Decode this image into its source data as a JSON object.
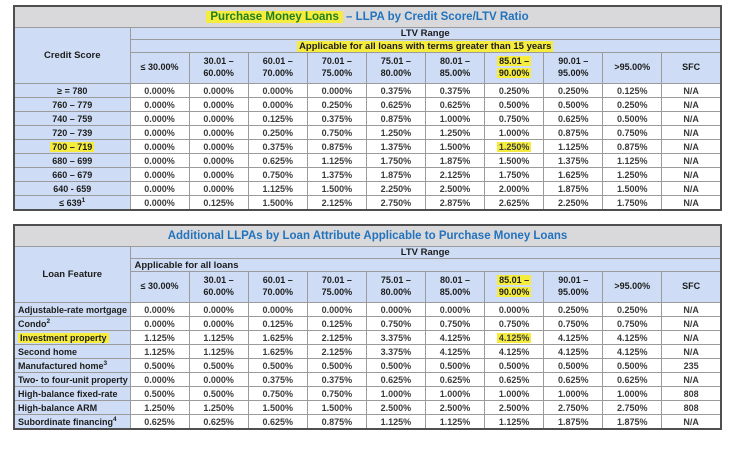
{
  "colors": {
    "title_bar_bg": "#D9D9DC",
    "title_text_blue": "#2273BE",
    "highlighted_title_text_green": "#1F7F1F",
    "header_cell_bg": "#CEDDF5",
    "highlight_yellow": "#F5EC3D",
    "data_text": "#3C3C3C",
    "border_inner": "#9B9B9B",
    "border_outer": "#4F4F4F"
  },
  "table1": {
    "title_parts": [
      {
        "text": "Purchase Money Loans",
        "style": "green-highlight"
      },
      {
        "text": " – LLPA by Credit Score/LTV Ratio",
        "style": "blue"
      }
    ],
    "corner_header": "Credit Score",
    "ltv_range_label": "LTV Range",
    "sub_header": {
      "text": "Applicable for all loans with terms greater than 15 years",
      "highlighted": true,
      "align": "center"
    },
    "columns": [
      {
        "line1": "≤ 30.00%",
        "line2": "",
        "highlight": false
      },
      {
        "line1": "30.01 –",
        "line2": "60.00%",
        "highlight": false
      },
      {
        "line1": "60.01 –",
        "line2": "70.00%",
        "highlight": false
      },
      {
        "line1": "70.01 –",
        "line2": "75.00%",
        "highlight": false
      },
      {
        "line1": "75.01 –",
        "line2": "80.00%",
        "highlight": false
      },
      {
        "line1": "80.01 –",
        "line2": "85.00%",
        "highlight": false
      },
      {
        "line1": "85.01 –",
        "line2": "90.00%",
        "highlight": true
      },
      {
        "line1": "90.01 –",
        "line2": "95.00%",
        "highlight": false
      },
      {
        "line1": ">95.00%",
        "line2": "",
        "highlight": false
      },
      {
        "line1": "SFC",
        "line2": "",
        "highlight": false
      }
    ],
    "rows": [
      {
        "label": "≥ = 780",
        "sup": "",
        "label_highlight": false,
        "highlight_col": -1,
        "values": [
          "0.000%",
          "0.000%",
          "0.000%",
          "0.000%",
          "0.375%",
          "0.375%",
          "0.250%",
          "0.250%",
          "0.125%",
          "N/A"
        ]
      },
      {
        "label": "760 – 779",
        "sup": "",
        "label_highlight": false,
        "highlight_col": -1,
        "values": [
          "0.000%",
          "0.000%",
          "0.000%",
          "0.250%",
          "0.625%",
          "0.625%",
          "0.500%",
          "0.500%",
          "0.250%",
          "N/A"
        ]
      },
      {
        "label": "740 – 759",
        "sup": "",
        "label_highlight": false,
        "highlight_col": -1,
        "values": [
          "0.000%",
          "0.000%",
          "0.125%",
          "0.375%",
          "0.875%",
          "1.000%",
          "0.750%",
          "0.625%",
          "0.500%",
          "N/A"
        ]
      },
      {
        "label": "720 – 739",
        "sup": "",
        "label_highlight": false,
        "highlight_col": -1,
        "values": [
          "0.000%",
          "0.000%",
          "0.250%",
          "0.750%",
          "1.250%",
          "1.250%",
          "1.000%",
          "0.875%",
          "0.750%",
          "N/A"
        ]
      },
      {
        "label": "700 – 719",
        "sup": "",
        "label_highlight": true,
        "highlight_col": 6,
        "values": [
          "0.000%",
          "0.000%",
          "0.375%",
          "0.875%",
          "1.375%",
          "1.500%",
          "1.250%",
          "1.125%",
          "0.875%",
          "N/A"
        ]
      },
      {
        "label": "680 – 699",
        "sup": "",
        "label_highlight": false,
        "highlight_col": -1,
        "values": [
          "0.000%",
          "0.000%",
          "0.625%",
          "1.125%",
          "1.750%",
          "1.875%",
          "1.500%",
          "1.375%",
          "1.125%",
          "N/A"
        ]
      },
      {
        "label": "660 – 679",
        "sup": "",
        "label_highlight": false,
        "highlight_col": -1,
        "values": [
          "0.000%",
          "0.000%",
          "0.750%",
          "1.375%",
          "1.875%",
          "2.125%",
          "1.750%",
          "1.625%",
          "1.250%",
          "N/A"
        ]
      },
      {
        "label": "640 - 659",
        "sup": "",
        "label_highlight": false,
        "highlight_col": -1,
        "values": [
          "0.000%",
          "0.000%",
          "1.125%",
          "1.500%",
          "2.250%",
          "2.500%",
          "2.000%",
          "1.875%",
          "1.500%",
          "N/A"
        ]
      },
      {
        "label": "≤ 639",
        "sup": "1",
        "label_highlight": false,
        "highlight_col": -1,
        "values": [
          "0.000%",
          "0.125%",
          "1.500%",
          "2.125%",
          "2.750%",
          "2.875%",
          "2.625%",
          "2.250%",
          "1.750%",
          "N/A"
        ]
      }
    ]
  },
  "table2": {
    "title_parts": [
      {
        "text": "Additional LLPAs by Loan Attribute Applicable to Purchase Money Loans",
        "style": "blue"
      }
    ],
    "corner_header": "Loan Feature",
    "ltv_range_label": "LTV Range",
    "sub_header": {
      "text": "Applicable for all loans",
      "highlighted": false,
      "align": "left"
    },
    "columns": [
      {
        "line1": "≤ 30.00%",
        "line2": "",
        "highlight": false
      },
      {
        "line1": "30.01 –",
        "line2": "60.00%",
        "highlight": false
      },
      {
        "line1": "60.01 –",
        "line2": "70.00%",
        "highlight": false
      },
      {
        "line1": "70.01 –",
        "line2": "75.00%",
        "highlight": false
      },
      {
        "line1": "75.01 –",
        "line2": "80.00%",
        "highlight": false
      },
      {
        "line1": "80.01 –",
        "line2": "85.00%",
        "highlight": false
      },
      {
        "line1": "85.01 –",
        "line2": "90.00%",
        "highlight": true
      },
      {
        "line1": "90.01 –",
        "line2": "95.00%",
        "highlight": false
      },
      {
        "line1": ">95.00%",
        "line2": "",
        "highlight": false
      },
      {
        "line1": "SFC",
        "line2": "",
        "highlight": false
      }
    ],
    "rows": [
      {
        "label": "Adjustable-rate mortgage",
        "sup": "",
        "label_highlight": false,
        "highlight_col": -1,
        "values": [
          "0.000%",
          "0.000%",
          "0.000%",
          "0.000%",
          "0.000%",
          "0.000%",
          "0.000%",
          "0.250%",
          "0.250%",
          "N/A"
        ]
      },
      {
        "label": "Condo",
        "sup": "2",
        "label_highlight": false,
        "highlight_col": -1,
        "values": [
          "0.000%",
          "0.000%",
          "0.125%",
          "0.125%",
          "0.750%",
          "0.750%",
          "0.750%",
          "0.750%",
          "0.750%",
          "N/A"
        ]
      },
      {
        "label": "Investment property",
        "sup": "",
        "label_highlight": true,
        "highlight_col": 6,
        "values": [
          "1.125%",
          "1.125%",
          "1.625%",
          "2.125%",
          "3.375%",
          "4.125%",
          "4.125%",
          "4.125%",
          "4.125%",
          "N/A"
        ]
      },
      {
        "label": "Second home",
        "sup": "",
        "label_highlight": false,
        "highlight_col": -1,
        "values": [
          "1.125%",
          "1.125%",
          "1.625%",
          "2.125%",
          "3.375%",
          "4.125%",
          "4.125%",
          "4.125%",
          "4.125%",
          "N/A"
        ]
      },
      {
        "label": "Manufactured home",
        "sup": "3",
        "label_highlight": false,
        "highlight_col": -1,
        "values": [
          "0.500%",
          "0.500%",
          "0.500%",
          "0.500%",
          "0.500%",
          "0.500%",
          "0.500%",
          "0.500%",
          "0.500%",
          "235"
        ]
      },
      {
        "label": "Two- to four-unit property",
        "sup": "",
        "label_highlight": false,
        "highlight_col": -1,
        "values": [
          "0.000%",
          "0.000%",
          "0.375%",
          "0.375%",
          "0.625%",
          "0.625%",
          "0.625%",
          "0.625%",
          "0.625%",
          "N/A"
        ]
      },
      {
        "label": "High-balance fixed-rate",
        "sup": "",
        "label_highlight": false,
        "highlight_col": -1,
        "values": [
          "0.500%",
          "0.500%",
          "0.750%",
          "0.750%",
          "1.000%",
          "1.000%",
          "1.000%",
          "1.000%",
          "1.000%",
          "808"
        ]
      },
      {
        "label": "High-balance ARM",
        "sup": "",
        "label_highlight": false,
        "highlight_col": -1,
        "values": [
          "1.250%",
          "1.250%",
          "1.500%",
          "1.500%",
          "2.500%",
          "2.500%",
          "2.500%",
          "2.750%",
          "2.750%",
          "808"
        ]
      },
      {
        "label": "Subordinate financing",
        "sup": "4",
        "label_highlight": false,
        "highlight_col": -1,
        "values": [
          "0.625%",
          "0.625%",
          "0.625%",
          "0.875%",
          "1.125%",
          "1.125%",
          "1.125%",
          "1.875%",
          "1.875%",
          "N/A"
        ]
      }
    ]
  }
}
